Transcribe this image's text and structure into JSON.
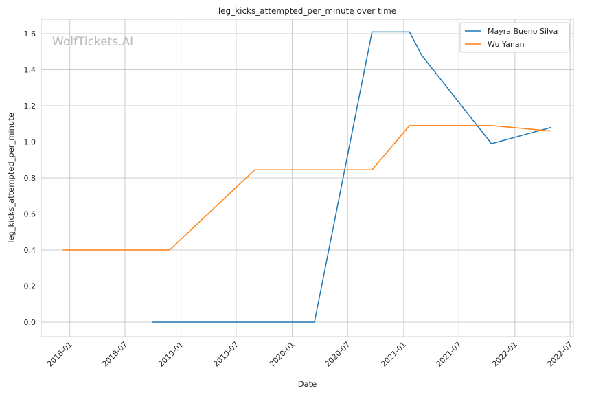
{
  "watermark": "WolfTickets.AI",
  "chart_data": {
    "type": "line",
    "title": "leg_kicks_attempted_per_minute over time",
    "xlabel": "Date",
    "ylabel": "leg_kicks_attempted_per_minute",
    "x_axis": "date",
    "xlim": [
      "2017-09-29",
      "2022-07-12"
    ],
    "ylim": [
      -0.08,
      1.68
    ],
    "x_ticks": [
      "2018-01",
      "2018-07",
      "2019-01",
      "2019-07",
      "2020-01",
      "2020-07",
      "2021-01",
      "2021-07",
      "2022-01",
      "2022-07"
    ],
    "y_ticks": [
      0.0,
      0.2,
      0.4,
      0.6,
      0.8,
      1.0,
      1.2,
      1.4,
      1.6
    ],
    "y_tick_labels": [
      "0.0",
      "0.2",
      "0.4",
      "0.6",
      "0.8",
      "1.0",
      "1.2",
      "1.4",
      "1.6"
    ],
    "grid": true,
    "legend_position": "top-right",
    "series": [
      {
        "name": "Mayra Bueno Silva",
        "color": "#1f77b4",
        "points": [
          {
            "x": "2018-09-29",
            "y": 0.0
          },
          {
            "x": "2020-03-14",
            "y": 0.0
          },
          {
            "x": "2020-09-19",
            "y": 1.61
          },
          {
            "x": "2021-01-20",
            "y": 1.61
          },
          {
            "x": "2021-03-01",
            "y": 1.48
          },
          {
            "x": "2021-10-16",
            "y": 0.99
          },
          {
            "x": "2022-04-30",
            "y": 1.08
          }
        ]
      },
      {
        "name": "Wu Yanan",
        "color": "#ff7f0e",
        "points": [
          {
            "x": "2017-12-09",
            "y": 0.4
          },
          {
            "x": "2018-11-24",
            "y": 0.4
          },
          {
            "x": "2019-08-31",
            "y": 0.845
          },
          {
            "x": "2020-09-19",
            "y": 0.845
          },
          {
            "x": "2021-01-20",
            "y": 1.09
          },
          {
            "x": "2021-10-16",
            "y": 1.09
          },
          {
            "x": "2022-04-30",
            "y": 1.06
          }
        ]
      }
    ]
  }
}
